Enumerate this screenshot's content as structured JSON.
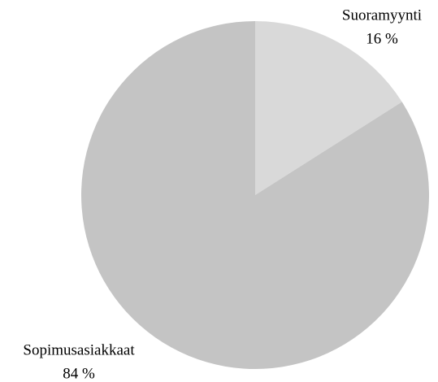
{
  "chart_data": {
    "type": "pie",
    "categories": [
      "Suoramyynti",
      "Sopimusasiakkaat"
    ],
    "values": [
      16,
      84
    ],
    "value_labels": [
      "16 %",
      "84 %"
    ],
    "colors": [
      "#d9d9d9",
      "#c4c4c4"
    ]
  }
}
